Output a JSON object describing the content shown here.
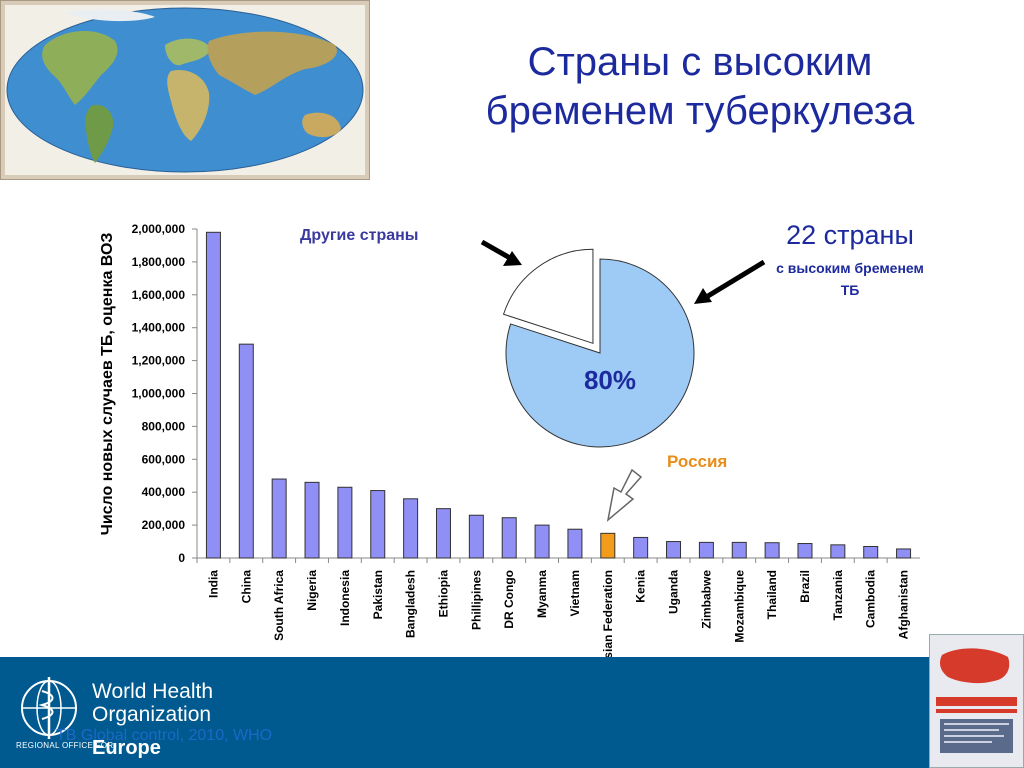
{
  "slide": {
    "title_line1": "Страны с высоким",
    "title_line2": "бременем туберкулеза",
    "pie": {
      "other_label": "Другие страны",
      "main_label_big": "22 страны",
      "main_label_line1": "с высоким бременем",
      "main_label_line2": "ТБ",
      "percent_label": "80%",
      "colors": {
        "main": "#9ecbf5",
        "other": "#ffffff",
        "outline": "#333333"
      }
    },
    "russia_label": "Россия",
    "footer": {
      "org_line1": "World Health",
      "org_line2": "Organization",
      "region_prefix": "REGIONAL OFFICE FOR",
      "region_name": "Europe",
      "source_note": "TB Global control, 2010, WHO"
    },
    "colors": {
      "title": "#1d2a9e",
      "footer_bg": "#005a8f",
      "bar": "#8f8ff5",
      "bar_highlight": "#f39c1c",
      "russia_text": "#e88d1a"
    }
  },
  "chart_data": {
    "type": "bar",
    "ylabel": "Число новых случаев ТБ, оценка ВОЗ",
    "xlabel": "",
    "ylim": [
      0,
      2000000
    ],
    "yticks": [
      "0",
      "200,000",
      "400,000",
      "600,000",
      "800,000",
      "1,000,000",
      "1,200,000",
      "1,400,000",
      "1,600,000",
      "1,800,000",
      "2,000,000"
    ],
    "ytick_values": [
      0,
      200000,
      400000,
      600000,
      800000,
      1000000,
      1200000,
      1400000,
      1600000,
      1800000,
      2000000
    ],
    "categories": [
      "India",
      "China",
      "South Africa",
      "Nigeria",
      "Indonesia",
      "Pakistan",
      "Bangladesh",
      "Ethiopia",
      "Phillipines",
      "DR Congo",
      "Myanma",
      "Vietnam",
      "Russian Federation",
      "Kenia",
      "Uganda",
      "Zimbabwe",
      "Mozambique",
      "Thailand",
      "Brazil",
      "Tanzania",
      "Cambodia",
      "Afghanistan"
    ],
    "values": [
      1980000,
      1300000,
      480000,
      460000,
      430000,
      410000,
      360000,
      300000,
      260000,
      245000,
      200000,
      175000,
      150000,
      125000,
      100000,
      95000,
      95000,
      93000,
      88000,
      80000,
      70000,
      55000
    ],
    "highlight_category": "Russian Federation",
    "grid": false
  }
}
